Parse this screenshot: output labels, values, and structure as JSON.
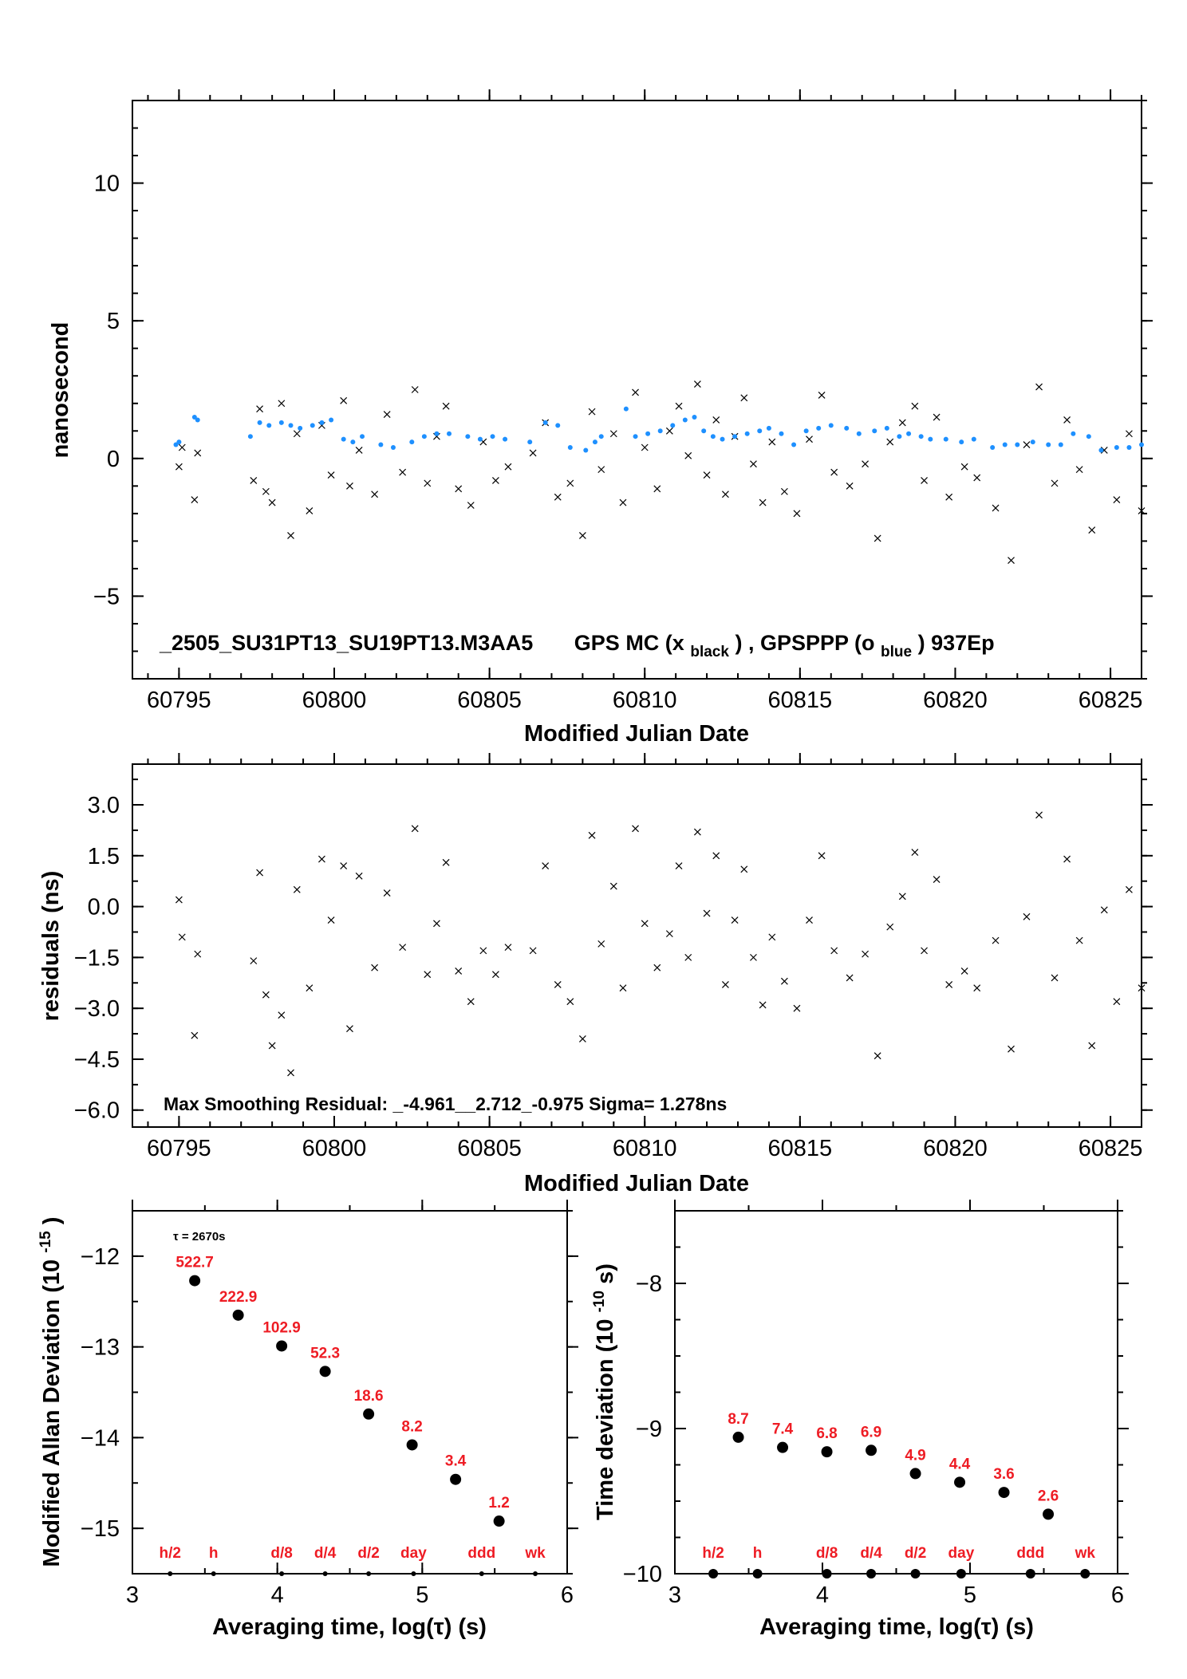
{
  "colors": {
    "black_series": "#000000",
    "blue_series": "#1e90ff",
    "label_red": "#ee1c24"
  },
  "chart_data": [
    {
      "type": "scatter",
      "id": "offset",
      "xlabel": "Modified Julian Date",
      "ylabel": "nanosecond",
      "xlim": [
        60793.5,
        60826
      ],
      "ylim": [
        -8,
        13
      ],
      "xticks": [
        "60795",
        "60800",
        "60805",
        "60810",
        "60815",
        "60820",
        "60825"
      ],
      "yticks": [
        "10",
        "5",
        "0",
        "−5"
      ],
      "annotation": {
        "label": "_2505_SU31PT13_SU19PT13.M3AA5",
        "gps_mc": "GPS MC (x",
        "black": "black",
        "sep": ") ,  GPSPPP (o",
        "blue": "blue",
        "tail": ")  937Ep"
      },
      "series": [
        {
          "name": "GPS MC",
          "marker": "x",
          "color": "#000000",
          "x": [
            60795.0,
            60795.1,
            60795.5,
            60795.6,
            60797.4,
            60797.6,
            60797.8,
            60798.0,
            60798.3,
            60798.6,
            60798.8,
            60799.2,
            60799.6,
            60799.9,
            60800.3,
            60800.5,
            60800.8,
            60801.3,
            60801.7,
            60802.2,
            60802.6,
            60803.0,
            60803.3,
            60803.6,
            60804.0,
            60804.4,
            60804.8,
            60805.2,
            60805.6,
            60806.4,
            60806.8,
            60807.2,
            60807.6,
            60808.0,
            60808.3,
            60808.6,
            60809.0,
            60809.3,
            60809.7,
            60810.0,
            60810.4,
            60810.8,
            60811.1,
            60811.4,
            60811.7,
            60812.0,
            60812.3,
            60812.6,
            60812.9,
            60813.2,
            60813.5,
            60813.8,
            60814.1,
            60814.5,
            60814.9,
            60815.3,
            60815.7,
            60816.1,
            60816.6,
            60817.1,
            60817.5,
            60817.9,
            60818.3,
            60818.7,
            60819.0,
            60819.4,
            60819.8,
            60820.3,
            60820.7,
            60821.3,
            60821.8,
            60822.3,
            60822.7,
            60823.2,
            60823.6,
            60824.0,
            60824.4,
            60824.8,
            60825.2,
            60825.6,
            60826.0
          ],
          "y": [
            -0.3,
            0.4,
            -1.5,
            0.2,
            -0.8,
            1.8,
            -1.2,
            -1.6,
            2.0,
            -2.8,
            0.9,
            -1.9,
            1.2,
            -0.6,
            2.1,
            -1.0,
            0.3,
            -1.3,
            1.6,
            -0.5,
            2.5,
            -0.9,
            0.8,
            1.9,
            -1.1,
            -1.7,
            0.6,
            -0.8,
            -0.3,
            0.2,
            1.3,
            -1.4,
            -0.9,
            -2.8,
            1.7,
            -0.4,
            0.9,
            -1.6,
            2.4,
            0.4,
            -1.1,
            1.0,
            1.9,
            0.1,
            2.7,
            -0.6,
            1.4,
            -1.3,
            0.8,
            2.2,
            -0.2,
            -1.6,
            0.6,
            -1.2,
            -2.0,
            0.7,
            2.3,
            -0.5,
            -1.0,
            -0.2,
            -2.9,
            0.6,
            1.3,
            1.9,
            -0.8,
            1.5,
            -1.4,
            -0.3,
            -0.7,
            -1.8,
            -3.7,
            0.5,
            2.6,
            -0.9,
            1.4,
            -0.4,
            -2.6,
            0.3,
            -1.5,
            0.9,
            -1.9
          ]
        },
        {
          "name": "GPSPPP",
          "marker": "o",
          "color": "#1e90ff",
          "x": [
            60794.9,
            60795.0,
            60795.5,
            60795.6,
            60797.3,
            60797.6,
            60797.9,
            60798.3,
            60798.6,
            60798.9,
            60799.3,
            60799.6,
            60799.9,
            60800.3,
            60800.6,
            60800.9,
            60801.5,
            60801.9,
            60802.5,
            60802.9,
            60803.3,
            60803.7,
            60804.3,
            60804.7,
            60805.1,
            60805.5,
            60806.3,
            60806.8,
            60807.2,
            60807.6,
            60808.1,
            60808.4,
            60808.6,
            60809.4,
            60809.7,
            60810.1,
            60810.5,
            60810.9,
            60811.3,
            60811.6,
            60811.9,
            60812.2,
            60812.5,
            60812.9,
            60813.3,
            60813.7,
            60814.0,
            60814.4,
            60814.8,
            60815.2,
            60815.6,
            60816.0,
            60816.5,
            60816.9,
            60817.4,
            60817.8,
            60818.2,
            60818.5,
            60818.9,
            60819.2,
            60819.7,
            60820.2,
            60820.6,
            60821.2,
            60821.6,
            60822.0,
            60822.5,
            60823.0,
            60823.4,
            60823.8,
            60824.3,
            60824.7,
            60825.2,
            60825.6,
            60826.0
          ],
          "y": [
            0.5,
            0.6,
            1.5,
            1.4,
            0.8,
            1.3,
            1.2,
            1.3,
            1.2,
            1.1,
            1.2,
            1.3,
            1.4,
            0.7,
            0.6,
            0.8,
            0.5,
            0.4,
            0.6,
            0.8,
            0.9,
            0.9,
            0.8,
            0.7,
            0.8,
            0.7,
            0.6,
            1.3,
            1.2,
            0.4,
            0.3,
            0.6,
            0.8,
            1.8,
            0.8,
            0.9,
            1.0,
            1.2,
            1.4,
            1.5,
            1.0,
            0.8,
            0.7,
            0.8,
            0.9,
            1.0,
            1.1,
            0.9,
            0.5,
            1.0,
            1.1,
            1.2,
            1.1,
            0.9,
            1.0,
            1.1,
            0.8,
            0.9,
            0.8,
            0.7,
            0.7,
            0.6,
            0.7,
            0.4,
            0.5,
            0.5,
            0.6,
            0.5,
            0.5,
            0.9,
            0.8,
            0.3,
            0.4,
            0.4,
            0.5
          ]
        }
      ]
    },
    {
      "type": "scatter",
      "id": "residuals",
      "xlabel": "Modified Julian Date",
      "ylabel": "residuals (ns)",
      "xlim": [
        60793.5,
        60826
      ],
      "ylim": [
        -6.5,
        4.2
      ],
      "xticks": [
        "60795",
        "60800",
        "60805",
        "60810",
        "60815",
        "60820",
        "60825"
      ],
      "yticks": [
        "3.0",
        "1.5",
        "0.0",
        "−1.5",
        "−3.0",
        "−4.5",
        "−6.0"
      ],
      "annotation": "Max Smoothing Residual: _-4.961__2.712_-0.975  Sigma= 1.278ns",
      "series": [
        {
          "marker": "x",
          "color": "#000000",
          "x": [
            60795.0,
            60795.1,
            60795.5,
            60795.6,
            60797.4,
            60797.6,
            60797.8,
            60798.0,
            60798.3,
            60798.6,
            60798.8,
            60799.2,
            60799.6,
            60799.9,
            60800.3,
            60800.5,
            60800.8,
            60801.3,
            60801.7,
            60802.2,
            60802.6,
            60803.0,
            60803.3,
            60803.6,
            60804.0,
            60804.4,
            60804.8,
            60805.2,
            60805.6,
            60806.4,
            60806.8,
            60807.2,
            60807.6,
            60808.0,
            60808.3,
            60808.6,
            60809.0,
            60809.3,
            60809.7,
            60810.0,
            60810.4,
            60810.8,
            60811.1,
            60811.4,
            60811.7,
            60812.0,
            60812.3,
            60812.6,
            60812.9,
            60813.2,
            60813.5,
            60813.8,
            60814.1,
            60814.5,
            60814.9,
            60815.3,
            60815.7,
            60816.1,
            60816.6,
            60817.1,
            60817.5,
            60817.9,
            60818.3,
            60818.7,
            60819.0,
            60819.4,
            60819.8,
            60820.3,
            60820.7,
            60821.3,
            60821.8,
            60822.3,
            60822.7,
            60823.2,
            60823.6,
            60824.0,
            60824.4,
            60824.8,
            60825.2,
            60825.6,
            60826.0
          ],
          "y": [
            0.2,
            -0.9,
            -3.8,
            -1.4,
            -1.6,
            1.0,
            -2.6,
            -4.1,
            -3.2,
            -4.9,
            0.5,
            -2.4,
            1.4,
            -0.4,
            1.2,
            -3.6,
            0.9,
            -1.8,
            0.4,
            -1.2,
            2.3,
            -2.0,
            -0.5,
            1.3,
            -1.9,
            -2.8,
            -1.3,
            -2.0,
            -1.2,
            -1.3,
            1.2,
            -2.3,
            -2.8,
            -3.9,
            2.1,
            -1.1,
            0.6,
            -2.4,
            2.3,
            -0.5,
            -1.8,
            -0.8,
            1.2,
            -1.5,
            2.2,
            -0.2,
            1.5,
            -2.3,
            -0.4,
            1.1,
            -1.5,
            -2.9,
            -0.9,
            -2.2,
            -3.0,
            -0.4,
            1.5,
            -1.3,
            -2.1,
            -1.4,
            -4.4,
            -0.6,
            0.3,
            1.6,
            -1.3,
            0.8,
            -2.3,
            -1.9,
            -2.4,
            -1.0,
            -4.2,
            -0.3,
            2.7,
            -2.1,
            1.4,
            -1.0,
            -4.1,
            -0.1,
            -2.8,
            0.5,
            -2.4
          ]
        }
      ]
    },
    {
      "type": "scatter",
      "id": "mdev",
      "xlabel": "Averaging time, log(τ) (s)",
      "ylabel": "Modified Allan Deviation (10",
      "ylabel_sup": "-15",
      "ylabel_tail": ")",
      "xlim": [
        3,
        6
      ],
      "ylim": [
        -15.5,
        -11.5
      ],
      "xticks": [
        "3",
        "4",
        "5",
        "6"
      ],
      "yticks": [
        "−12",
        "−13",
        "−14",
        "−15"
      ],
      "tau_note": "τ = 2670s",
      "x": [
        3.43,
        3.73,
        4.03,
        4.33,
        4.63,
        4.93,
        5.23,
        5.53
      ],
      "y": [
        -12.27,
        -12.65,
        -12.99,
        -13.27,
        -13.74,
        -14.08,
        -14.46,
        -14.92
      ],
      "data_labels": [
        "522.7",
        "222.9",
        "102.9",
        "52.3",
        "18.6",
        "8.2",
        "3.4",
        "1.2"
      ],
      "markers": {
        "labels": [
          "h/2",
          "h",
          "d/8",
          "d/4",
          "d/2",
          "day",
          "ddd",
          "wk"
        ],
        "x": [
          3.26,
          3.56,
          4.03,
          4.33,
          4.63,
          4.94,
          5.41,
          5.78
        ]
      }
    },
    {
      "type": "scatter",
      "id": "tdev",
      "xlabel": "Averaging time, log(τ) (s)",
      "ylabel": "Time deviation (10",
      "ylabel_sup": "-10",
      "ylabel_tail": " s)",
      "xlim": [
        3,
        6
      ],
      "ylim": [
        -10,
        -7.5
      ],
      "xticks": [
        "3",
        "4",
        "5",
        "6"
      ],
      "yticks": [
        "−8",
        "−9",
        "−10"
      ],
      "x": [
        3.43,
        3.73,
        4.03,
        4.33,
        4.63,
        4.93,
        5.23,
        5.53
      ],
      "y": [
        -9.06,
        -9.13,
        -9.16,
        -9.15,
        -9.31,
        -9.37,
        -9.44,
        -9.59
      ],
      "data_labels": [
        "8.7",
        "7.4",
        "6.8",
        "6.9",
        "4.9",
        "4.4",
        "3.6",
        "2.6"
      ],
      "markers": {
        "labels": [
          "h/2",
          "h",
          "d/8",
          "d/4",
          "d/2",
          "day",
          "ddd",
          "wk"
        ],
        "x": [
          3.26,
          3.56,
          4.03,
          4.33,
          4.63,
          4.94,
          5.41,
          5.78
        ]
      }
    }
  ]
}
